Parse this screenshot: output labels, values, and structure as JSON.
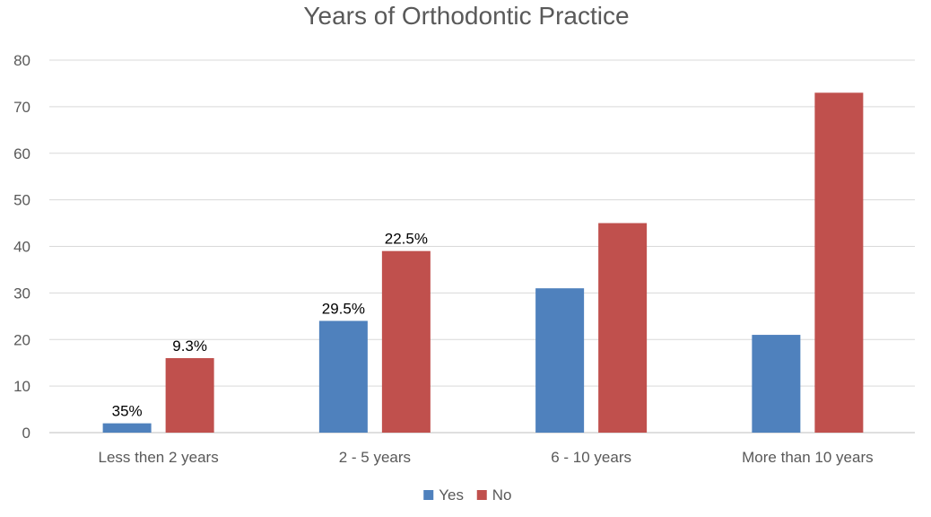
{
  "chart_data": {
    "type": "bar",
    "title": "Years of Orthodontic Practice",
    "xlabel": "",
    "ylabel": "",
    "ylim": [
      0,
      80
    ],
    "yticks": [
      0,
      10,
      20,
      30,
      40,
      50,
      60,
      70,
      80
    ],
    "grid": true,
    "legend": "bottom",
    "categories": [
      "Less then 2 years",
      "2 - 5 years",
      "6 - 10 years",
      "More than 10 years"
    ],
    "series": [
      {
        "name": "Yes",
        "color": "#4f81bd",
        "values": [
          2,
          24,
          31,
          21
        ],
        "labels": [
          "35%",
          "29.5%",
          "",
          ""
        ]
      },
      {
        "name": "No",
        "color": "#c0504d",
        "values": [
          16,
          39,
          45,
          73
        ],
        "labels": [
          "9.3%",
          "22.5%",
          "",
          ""
        ]
      }
    ]
  }
}
